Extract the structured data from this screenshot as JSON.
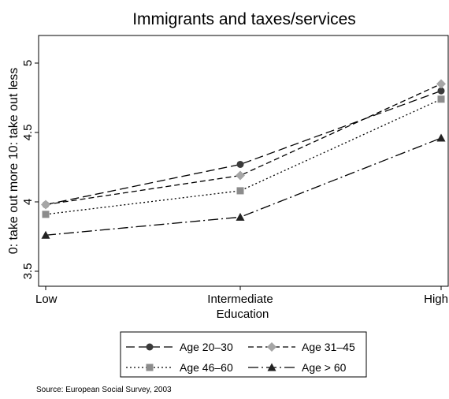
{
  "chart_data": {
    "type": "line",
    "title": "Immigrants and taxes/services",
    "xlabel": "Education",
    "ylabel": "0: take out more 10: take out less",
    "categories": [
      "Low",
      "Intermediate",
      "High"
    ],
    "ylim": [
      3.5,
      5
    ],
    "yticks": [
      "3.5",
      "4",
      "4.5",
      "5"
    ],
    "grid": false,
    "legend_position": "bottom",
    "source": "Source: European Social Survey, 2003",
    "series": [
      {
        "name": "Age 20–30",
        "values": [
          3.98,
          4.27,
          4.8
        ],
        "marker": "circle",
        "dash": "dash",
        "color": "#3a3a3a"
      },
      {
        "name": "Age 31–45",
        "values": [
          3.98,
          4.19,
          4.85
        ],
        "marker": "diamond",
        "dash": "shortdash",
        "color": "#a6a6a6"
      },
      {
        "name": "Age 46–60",
        "values": [
          3.91,
          4.08,
          4.74
        ],
        "marker": "square",
        "dash": "dot",
        "color": "#8c8c8c"
      },
      {
        "name": "Age > 60",
        "values": [
          3.76,
          3.89,
          4.46
        ],
        "marker": "triangle",
        "dash": "dashdot",
        "color": "#222222"
      }
    ]
  }
}
